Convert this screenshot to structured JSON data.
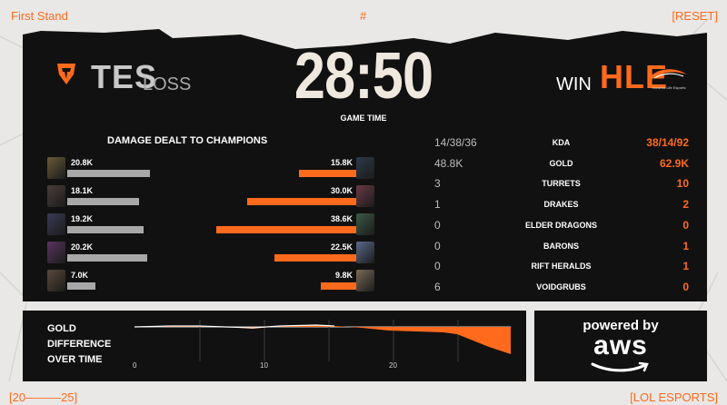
{
  "header": {
    "left": "First Stand",
    "center": "#",
    "right": "[RESET]"
  },
  "footer": {
    "left": "[20———25]",
    "right": "[LOL ESPORTS]"
  },
  "match": {
    "team_left": {
      "name": "TES",
      "result": "LOSS"
    },
    "team_right": {
      "name": "HLE",
      "result": "WIN",
      "logo_caption": "Hanwha Life Esports"
    },
    "timer": "28:50",
    "timer_label": "GAME TIME"
  },
  "damage": {
    "title": "DAMAGE DEALT TO CHAMPIONS",
    "left": [
      {
        "value": "20.8K",
        "amount": 20.8
      },
      {
        "value": "18.1K",
        "amount": 18.1
      },
      {
        "value": "19.2K",
        "amount": 19.2
      },
      {
        "value": "20.2K",
        "amount": 20.2
      },
      {
        "value": "7.0K",
        "amount": 7.0
      }
    ],
    "right": [
      {
        "value": "15.8K",
        "amount": 15.8
      },
      {
        "value": "30.0K",
        "amount": 30.0
      },
      {
        "value": "38.6K",
        "amount": 38.6
      },
      {
        "value": "22.5K",
        "amount": 22.5
      },
      {
        "value": "9.8K",
        "amount": 9.8
      }
    ]
  },
  "stats": [
    {
      "label": "KDA",
      "left": "14/38/36",
      "right": "38/14/92"
    },
    {
      "label": "GOLD",
      "left": "48.8K",
      "right": "62.9K"
    },
    {
      "label": "TURRETS",
      "left": "3",
      "right": "10"
    },
    {
      "label": "DRAKES",
      "left": "1",
      "right": "2"
    },
    {
      "label": "ELDER DRAGONS",
      "left": "0",
      "right": "0"
    },
    {
      "label": "BARONS",
      "left": "0",
      "right": "1"
    },
    {
      "label": "RIFT HERALDS",
      "left": "0",
      "right": "1"
    },
    {
      "label": "VOIDGRUBS",
      "left": "6",
      "right": "0"
    }
  ],
  "gold_diff": {
    "title_lines": [
      "GOLD",
      "DIFFERENCE",
      "OVER TIME"
    ],
    "ticks": [
      "0",
      "10",
      "20"
    ]
  },
  "sponsor": {
    "line1": "powered by",
    "line2": "aws"
  },
  "colors": {
    "accent": "#ff6a1c",
    "panel": "#111111",
    "neutral_bar": "#a8a8a8",
    "background": "#e9e8e6"
  }
}
